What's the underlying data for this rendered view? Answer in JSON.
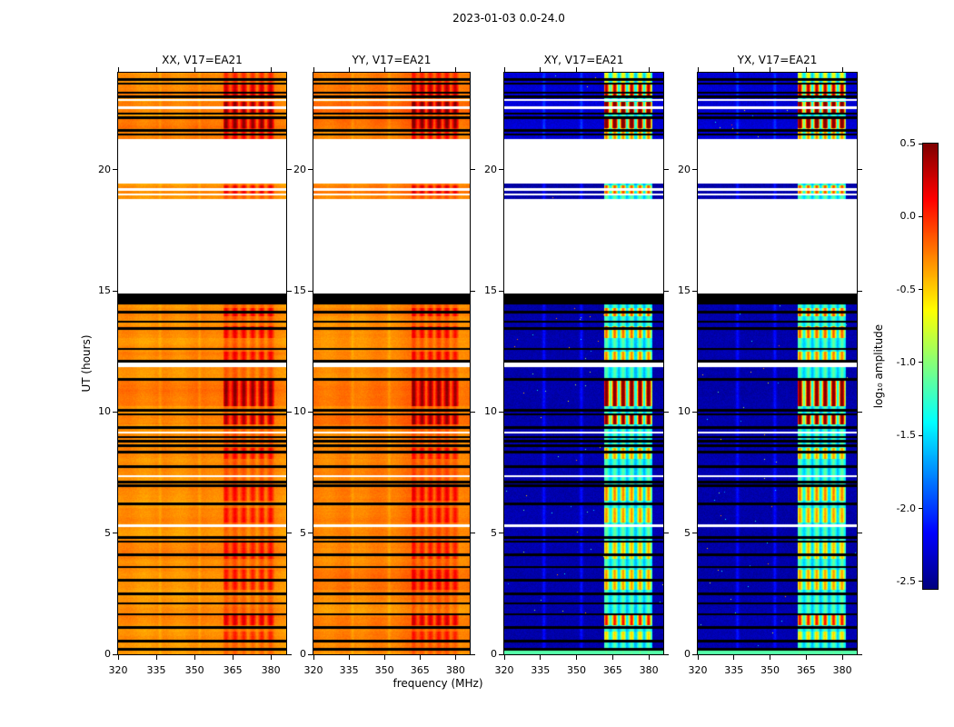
{
  "figure": {
    "title": "2023-01-03 0.0-24.0",
    "background": "#ffffff"
  },
  "axes": {
    "x_label": "frequency (MHz)",
    "y_label": "UT (hours)",
    "x_ticks": [
      320,
      335,
      350,
      365,
      380
    ],
    "x_tick_labels": [
      "320",
      "335",
      "350",
      "365",
      "380"
    ],
    "y_ticks": [
      0,
      5,
      10,
      15,
      20
    ],
    "y_tick_labels": [
      "0",
      "5",
      "10",
      "15",
      "20"
    ],
    "x_range": [
      320,
      386
    ],
    "y_range": [
      0,
      24
    ],
    "x_unit": "MHz",
    "y_unit": "hours",
    "grid": false
  },
  "colorbar": {
    "label": "log₁₀ amplitude",
    "ticks": [
      0.5,
      0.0,
      -0.5,
      -1.0,
      -1.5,
      -2.0,
      -2.5
    ],
    "tick_labels": [
      "0.5",
      "0.0",
      "-0.5",
      "-1.0",
      "-1.5",
      "-2.0",
      "-2.5"
    ],
    "vmin": -2.55,
    "vmax": 0.5,
    "colormap": "jet"
  },
  "chart_data": {
    "type": "heatmap",
    "subtype": "dynamic-spectrum",
    "date": "2023-01-03",
    "time_span_hours": [
      0.0,
      24.0
    ],
    "baseline": "V17=EA21",
    "panels": [
      {
        "title": "XX, V17=EA21",
        "polarization": "XX",
        "kind": "auto",
        "base_amplitude": -0.33
      },
      {
        "title": "YY, V17=EA21",
        "polarization": "YY",
        "kind": "auto",
        "base_amplitude": -0.3
      },
      {
        "title": "XY, V17=EA21",
        "polarization": "XY",
        "kind": "cross",
        "base_amplitude": -2.42
      },
      {
        "title": "YX, V17=EA21",
        "polarization": "YX",
        "kind": "cross",
        "base_amplitude": -2.42
      }
    ],
    "time_segments": [
      {
        "t0": 0.0,
        "t1": 14.42,
        "kind": "data"
      },
      {
        "t0": 14.42,
        "t1": 14.88,
        "kind": "black"
      },
      {
        "t0": 14.88,
        "t1": 18.78,
        "kind": "gap"
      },
      {
        "t0": 18.78,
        "t1": 19.42,
        "kind": "data"
      },
      {
        "t0": 19.42,
        "t1": 21.28,
        "kind": "gap"
      },
      {
        "t0": 21.28,
        "t1": 24.0,
        "kind": "data"
      }
    ],
    "black_lines": [
      0.2,
      0.55,
      1.1,
      1.65,
      2.1,
      2.5,
      3.05,
      3.6,
      4.1,
      4.65,
      4.82,
      6.2,
      6.95,
      7.1,
      7.75,
      8.35,
      8.6,
      8.8,
      8.97,
      9.35,
      9.9,
      10.07,
      11.35,
      12.1,
      12.6,
      13.45,
      13.72,
      14.12,
      21.45,
      21.62,
      22.15,
      22.32,
      23.0,
      23.17,
      23.55,
      23.72
    ],
    "white_lines": [
      5.3,
      7.35,
      9.15,
      11.9,
      12.02,
      18.97,
      19.18,
      22.55,
      22.88
    ],
    "rfi_band_mhz": [
      361.5,
      381.5
    ],
    "rfi_notches_mhz": [
      367.5,
      371.0,
      374.5,
      378.0
    ],
    "faint_lines_mhz": [
      336.5,
      352.0
    ],
    "bursts": [
      {
        "t0": 0.55,
        "t1": 0.95,
        "s": 0.35
      },
      {
        "t0": 1.2,
        "t1": 1.6,
        "s": 0.7
      },
      {
        "t0": 2.65,
        "t1": 3.5,
        "s": 0.45
      },
      {
        "t0": 3.95,
        "t1": 4.6,
        "s": 0.4
      },
      {
        "t0": 5.45,
        "t1": 6.05,
        "s": 0.45
      },
      {
        "t0": 6.35,
        "t1": 7.0,
        "s": 0.5
      },
      {
        "t0": 8.05,
        "t1": 8.5,
        "s": 0.45
      },
      {
        "t0": 9.5,
        "t1": 9.95,
        "s": 1.0
      },
      {
        "t0": 10.25,
        "t1": 11.3,
        "s": 1.1
      },
      {
        "t0": 12.15,
        "t1": 12.5,
        "s": 0.5
      },
      {
        "t0": 13.05,
        "t1": 13.55,
        "s": 0.55
      },
      {
        "t0": 13.95,
        "t1": 14.3,
        "s": 0.6
      },
      {
        "t0": 19.0,
        "t1": 19.35,
        "s": 0.6
      },
      {
        "t0": 21.28,
        "t1": 21.7,
        "s": 0.5
      },
      {
        "t0": 21.7,
        "t1": 22.1,
        "s": 1.2
      },
      {
        "t0": 22.35,
        "t1": 22.8,
        "s": 1.2
      },
      {
        "t0": 22.95,
        "t1": 23.5,
        "s": 0.85
      },
      {
        "t0": 23.5,
        "t1": 24.0,
        "s": 0.3
      }
    ]
  }
}
